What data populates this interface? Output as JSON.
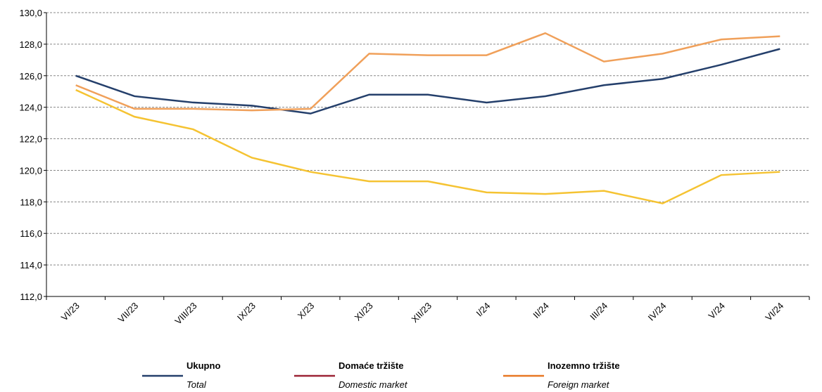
{
  "chart_data": {
    "type": "line",
    "categories": [
      "VI/23",
      "VII/23",
      "VIII/23",
      "IX/23",
      "X/23",
      "XI/23",
      "XII/23",
      "I/24",
      "II/24",
      "III/24",
      "IV/24",
      "V/24",
      "VI/24"
    ],
    "series": [
      {
        "name": "Ukupno",
        "name_en": "Total",
        "color": "#243F6B",
        "legend_color": "#243F6B",
        "values": [
          126.0,
          124.7,
          124.3,
          124.1,
          123.6,
          124.8,
          124.8,
          124.3,
          124.7,
          125.4,
          125.8,
          126.7,
          127.7
        ]
      },
      {
        "name": "Domaće tržište",
        "name_en": "Domestic market",
        "color": "#F5C332",
        "legend_color": "#9B2335",
        "values": [
          125.1,
          123.4,
          122.6,
          120.8,
          119.9,
          119.3,
          119.3,
          118.6,
          118.5,
          118.7,
          117.9,
          119.7,
          119.9
        ]
      },
      {
        "name": "Inozemno tržište",
        "name_en": "Foreign market",
        "color": "#F0A05A",
        "legend_color": "#E87722",
        "values": [
          125.4,
          123.9,
          123.9,
          123.8,
          123.9,
          127.4,
          127.3,
          127.3,
          128.7,
          126.9,
          127.4,
          128.3,
          128.5
        ]
      }
    ],
    "ylim": [
      112,
      130
    ],
    "yticks": [
      {
        "value": 112,
        "label": "112,0"
      },
      {
        "value": 114,
        "label": "114,0"
      },
      {
        "value": 116,
        "label": "116,0"
      },
      {
        "value": 118,
        "label": "118,0"
      },
      {
        "value": 120,
        "label": "120,0"
      },
      {
        "value": 122,
        "label": "122,0"
      },
      {
        "value": 124,
        "label": "124,0"
      },
      {
        "value": 126,
        "label": "126,0"
      },
      {
        "value": 128,
        "label": "128,0"
      },
      {
        "value": 130,
        "label": "130,0"
      }
    ],
    "grid": true
  }
}
